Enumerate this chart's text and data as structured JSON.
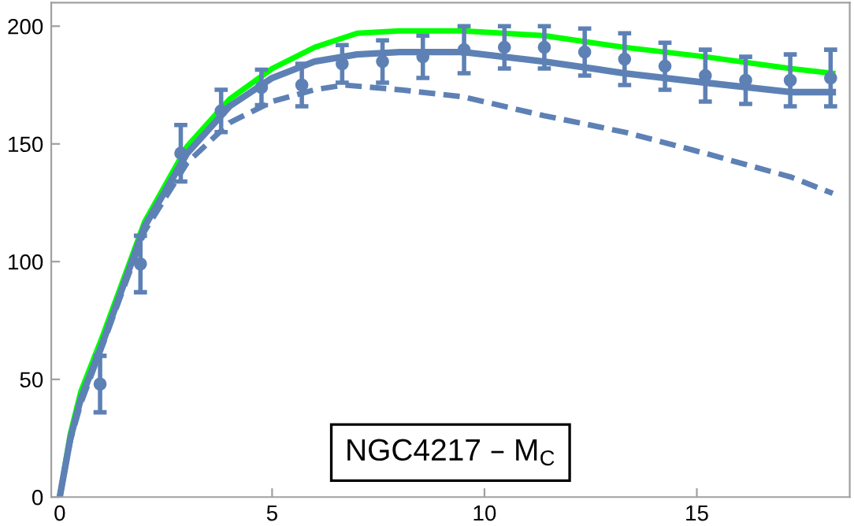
{
  "chart_data": {
    "type": "line",
    "xlim": [
      -0.2,
      18.6
    ],
    "ylim": [
      0,
      210
    ],
    "xticks": [
      0,
      5,
      10,
      15
    ],
    "yticks": [
      0,
      50,
      100,
      150,
      200
    ],
    "grid": false,
    "legend": false,
    "annotations": [
      "NGC4217 – M$_{C}$"
    ],
    "series": [
      {
        "color": "#00ff00",
        "line_style": "solid",
        "x": [
          0,
          0.25,
          0.5,
          1,
          2,
          3,
          4,
          5,
          6,
          7,
          8,
          9,
          9.5,
          11.4,
          13.3,
          15.2,
          17.2,
          18.2
        ],
        "values": [
          0,
          27,
          45,
          68,
          117,
          149,
          169,
          182,
          191,
          197,
          198,
          198,
          198,
          196,
          191,
          187,
          182,
          180
        ]
      },
      {
        "color": "#5e81b5",
        "line_style": "solid",
        "x": [
          0,
          0.25,
          0.5,
          1,
          2,
          3,
          4,
          5,
          6,
          7,
          8,
          9,
          9.5,
          11.4,
          13.3,
          15.2,
          17.2,
          18.2
        ],
        "values": [
          0,
          25,
          42,
          65,
          115,
          146,
          166,
          178,
          185,
          188,
          189,
          189,
          189,
          185,
          180,
          176,
          172,
          172
        ]
      },
      {
        "color": "#5e81b5",
        "line_style": "dashed",
        "x": [
          0,
          0.25,
          0.5,
          1,
          2,
          3,
          4,
          5,
          6,
          6.7,
          8,
          9,
          9.5,
          11.4,
          13.3,
          15.2,
          17.2,
          18.2
        ],
        "values": [
          0,
          24,
          40,
          64,
          113,
          142,
          159,
          168,
          173,
          175,
          173,
          171,
          170,
          162,
          155,
          146,
          136,
          129
        ]
      },
      {
        "type": "scatter",
        "color": "#5e81b5",
        "marker": "circle",
        "x": [
          0.95,
          1.9,
          2.85,
          3.8,
          4.75,
          5.7,
          6.65,
          7.6,
          8.55,
          9.52,
          10.47,
          11.41,
          12.36,
          13.3,
          14.25,
          15.2,
          16.15,
          17.2,
          18.15
        ],
        "values": [
          48,
          99,
          146,
          164,
          174,
          175,
          184,
          185,
          187,
          190,
          191,
          191,
          189,
          186,
          183,
          179,
          177,
          177,
          178
        ],
        "errors": [
          12,
          12,
          12,
          9,
          7.5,
          9,
          8,
          9,
          9,
          10,
          9,
          9,
          10,
          11,
          10,
          11,
          10,
          11,
          12
        ]
      }
    ]
  }
}
